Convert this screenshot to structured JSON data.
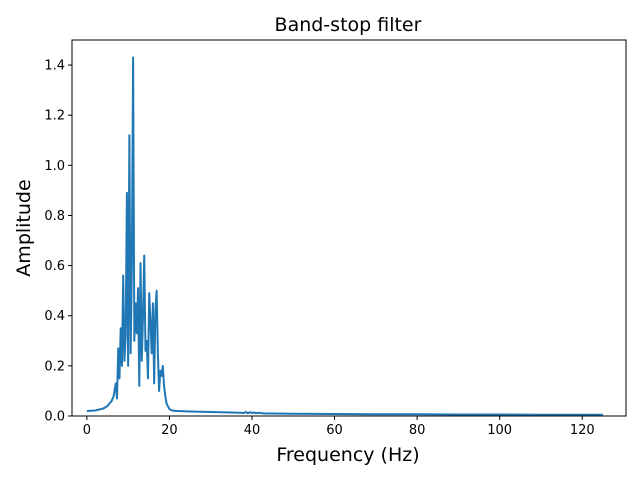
{
  "chart_data": {
    "type": "line",
    "title": "Band-stop filter",
    "xlabel": "Frequency (Hz)",
    "ylabel": "Amplitude",
    "xlim": [
      -3.6,
      130.6
    ],
    "ylim": [
      0,
      1.5
    ],
    "xticks": [
      0,
      20,
      40,
      60,
      80,
      100,
      120
    ],
    "yticks": [
      0.0,
      0.2,
      0.4,
      0.6,
      0.8,
      1.0,
      1.2,
      1.4
    ],
    "ytick_labels": [
      "0.0",
      "0.2",
      "0.4",
      "0.6",
      "0.8",
      "1.0",
      "1.2",
      "1.4"
    ],
    "grid": false,
    "series": [
      {
        "color": "#1f77b4",
        "x": [
          0,
          2,
          4,
          5,
          6,
          6.5,
          7,
          7.3,
          7.6,
          7.9,
          8.2,
          8.5,
          8.8,
          9.1,
          9.4,
          9.7,
          10.0,
          10.3,
          10.6,
          10.9,
          11.2,
          11.5,
          11.8,
          12.1,
          12.4,
          12.7,
          13.0,
          13.3,
          13.6,
          13.9,
          14.2,
          14.5,
          14.8,
          15.1,
          15.4,
          15.7,
          16.0,
          16.3,
          16.6,
          16.9,
          17.2,
          17.5,
          17.8,
          18.1,
          18.4,
          18.7,
          19.0,
          19.3,
          19.6,
          19.9,
          20.2,
          20.5,
          20.8,
          21.1,
          21.5,
          22,
          25,
          30,
          35,
          37,
          38,
          38.5,
          39,
          39.5,
          40,
          40.5,
          41,
          41.5,
          42,
          42.5,
          43,
          45,
          50,
          60,
          70,
          80,
          90,
          100,
          110,
          120,
          125
        ],
        "y": [
          0.02,
          0.022,
          0.03,
          0.04,
          0.06,
          0.08,
          0.13,
          0.07,
          0.27,
          0.15,
          0.35,
          0.2,
          0.56,
          0.22,
          0.32,
          0.89,
          0.2,
          1.12,
          0.25,
          0.6,
          1.43,
          0.3,
          0.45,
          0.33,
          0.51,
          0.12,
          0.61,
          0.22,
          0.4,
          0.64,
          0.26,
          0.3,
          0.15,
          0.49,
          0.38,
          0.25,
          0.45,
          0.13,
          0.42,
          0.5,
          0.25,
          0.1,
          0.18,
          0.16,
          0.2,
          0.12,
          0.08,
          0.05,
          0.04,
          0.03,
          0.025,
          0.023,
          0.022,
          0.021,
          0.02,
          0.02,
          0.018,
          0.016,
          0.014,
          0.013,
          0.012,
          0.016,
          0.011,
          0.015,
          0.012,
          0.014,
          0.011,
          0.013,
          0.012,
          0.011,
          0.01,
          0.01,
          0.009,
          0.008,
          0.007,
          0.007,
          0.006,
          0.006,
          0.005,
          0.005,
          0.005
        ]
      }
    ]
  }
}
